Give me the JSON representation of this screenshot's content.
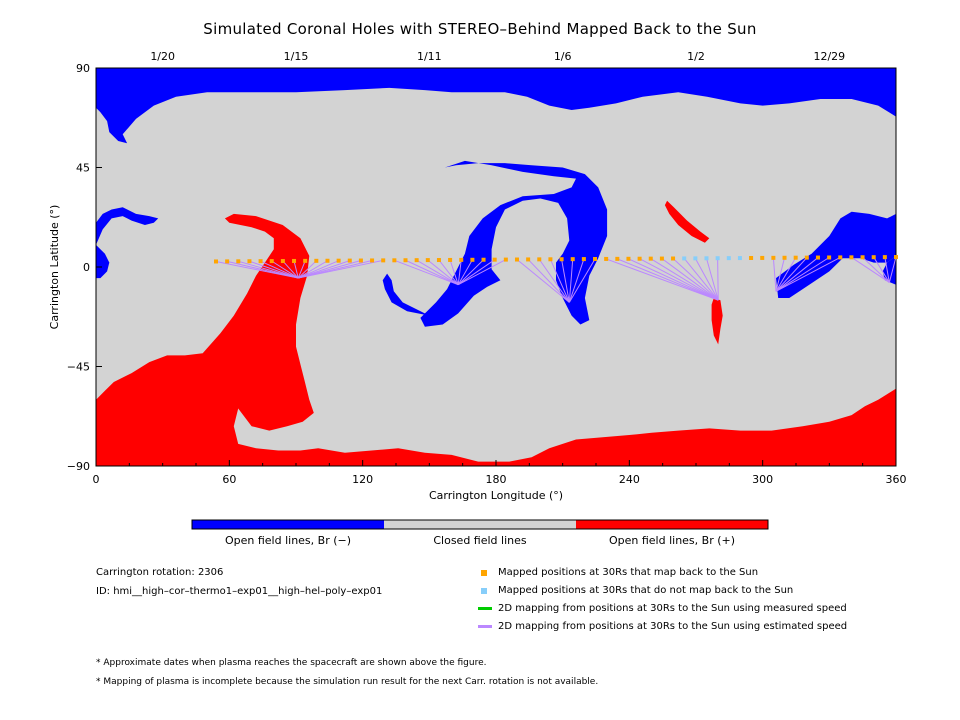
{
  "title": "Simulated Coronal Holes with STEREO–Behind Mapped Back to the Sun",
  "chart_data": {
    "type": "map",
    "xlabel": "Carrington Longitude (°)",
    "ylabel": "Carrington Latitude (°)",
    "xlim": [
      0,
      360
    ],
    "ylim": [
      -90,
      90
    ],
    "x_ticks": [
      0,
      60,
      120,
      180,
      240,
      300,
      360
    ],
    "y_ticks": [
      -90,
      -45,
      0,
      45,
      90
    ],
    "top_date_labels": [
      {
        "x": 30,
        "label": "1/20"
      },
      {
        "x": 90,
        "label": "1/15"
      },
      {
        "x": 150,
        "label": "1/11"
      },
      {
        "x": 210,
        "label": "1/6"
      },
      {
        "x": 270,
        "label": "1/2"
      },
      {
        "x": 330,
        "label": "12/29"
      }
    ],
    "colors": {
      "negative": "#0000ff",
      "closed": "#d3d3d3",
      "positive": "#ff0000",
      "mapped": "#ffa500",
      "unmapped": "#87cefa",
      "measured_line": "#00cc00",
      "estimated_line": "#bb88ff"
    },
    "spacecraft_track": {
      "lon_start": 54,
      "lon_end": 360,
      "lat_start": 2.5,
      "lat_end": 4.5,
      "count": 62,
      "unmapped_lon_ranges": [
        [
          262,
          294
        ]
      ]
    },
    "mapping_footpoints": [
      {
        "lon": 91,
        "lat": -5,
        "from_lon": [
          54,
          130
        ]
      },
      {
        "lon": 163,
        "lat": -8,
        "from_lon": [
          133,
          185
        ]
      },
      {
        "lon": 213,
        "lat": -16,
        "from_lon": [
          188,
          225
        ]
      },
      {
        "lon": 280,
        "lat": -15,
        "from_lon": [
          225,
          280
        ]
      },
      {
        "lon": 306,
        "lat": -11,
        "from_lon": [
          300,
          335
        ]
      },
      {
        "lon": 357,
        "lat": -7,
        "from_lon": [
          338,
          360
        ]
      }
    ]
  },
  "colorbar": {
    "labels": [
      "Open field lines, Br (−)",
      "Closed field lines",
      "Open field lines, Br (+)"
    ]
  },
  "info": {
    "rotation": "Carrington rotation: 2306",
    "id": "ID: hmi__high–cor–thermo1–exp01__high–hel–poly–exp01"
  },
  "legend": [
    {
      "label": "Mapped positions at 30Rs that map back to the Sun",
      "marker": "square",
      "color": "#ffa500"
    },
    {
      "label": "Mapped positions at 30Rs that do not map back to the Sun",
      "marker": "square",
      "color": "#87cefa"
    },
    {
      "label": "2D mapping from positions at 30Rs to the Sun using measured speed",
      "marker": "line",
      "color": "#00cc00"
    },
    {
      "label": "2D mapping from positions at 30Rs to the Sun using estimated speed",
      "marker": "line",
      "color": "#bb88ff"
    }
  ],
  "notes": [
    "* Approximate dates when plasma reaches the spacecraft are shown above the figure.",
    "* Mapping of plasma is incomplete because the simulation run result for the next Carr. rotation is not available."
  ]
}
